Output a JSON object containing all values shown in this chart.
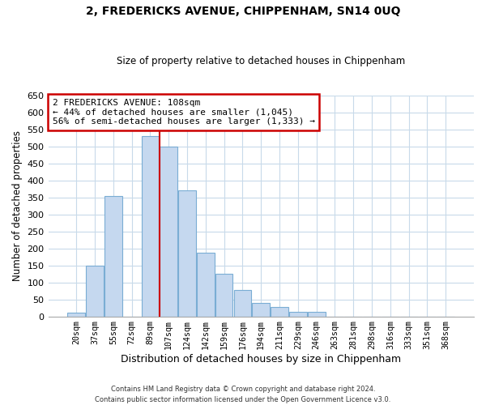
{
  "title": "2, FREDERICKS AVENUE, CHIPPENHAM, SN14 0UQ",
  "subtitle": "Size of property relative to detached houses in Chippenham",
  "xlabel": "Distribution of detached houses by size in Chippenham",
  "ylabel": "Number of detached properties",
  "bar_labels": [
    "20sqm",
    "37sqm",
    "55sqm",
    "72sqm",
    "89sqm",
    "107sqm",
    "124sqm",
    "142sqm",
    "159sqm",
    "176sqm",
    "194sqm",
    "211sqm",
    "229sqm",
    "246sqm",
    "263sqm",
    "281sqm",
    "298sqm",
    "316sqm",
    "333sqm",
    "351sqm",
    "368sqm"
  ],
  "bar_values": [
    12,
    150,
    353,
    0,
    530,
    500,
    370,
    187,
    125,
    78,
    40,
    28,
    14,
    13,
    0,
    0,
    0,
    0,
    0,
    0,
    0
  ],
  "bar_color": "#c5d8ef",
  "bar_edge_color": "#7aadd4",
  "highlight_color": "#cc0000",
  "vline_index": 5,
  "annotation_title": "2 FREDERICKS AVENUE: 108sqm",
  "annotation_line1": "← 44% of detached houses are smaller (1,045)",
  "annotation_line2": "56% of semi-detached houses are larger (1,333) →",
  "annotation_box_color": "#ffffff",
  "annotation_box_edge_color": "#cc0000",
  "ylim": [
    0,
    650
  ],
  "yticks": [
    0,
    50,
    100,
    150,
    200,
    250,
    300,
    350,
    400,
    450,
    500,
    550,
    600,
    650
  ],
  "footer1": "Contains HM Land Registry data © Crown copyright and database right 2024.",
  "footer2": "Contains public sector information licensed under the Open Government Licence v3.0.",
  "bg_color": "#ffffff",
  "grid_color": "#c8daea"
}
